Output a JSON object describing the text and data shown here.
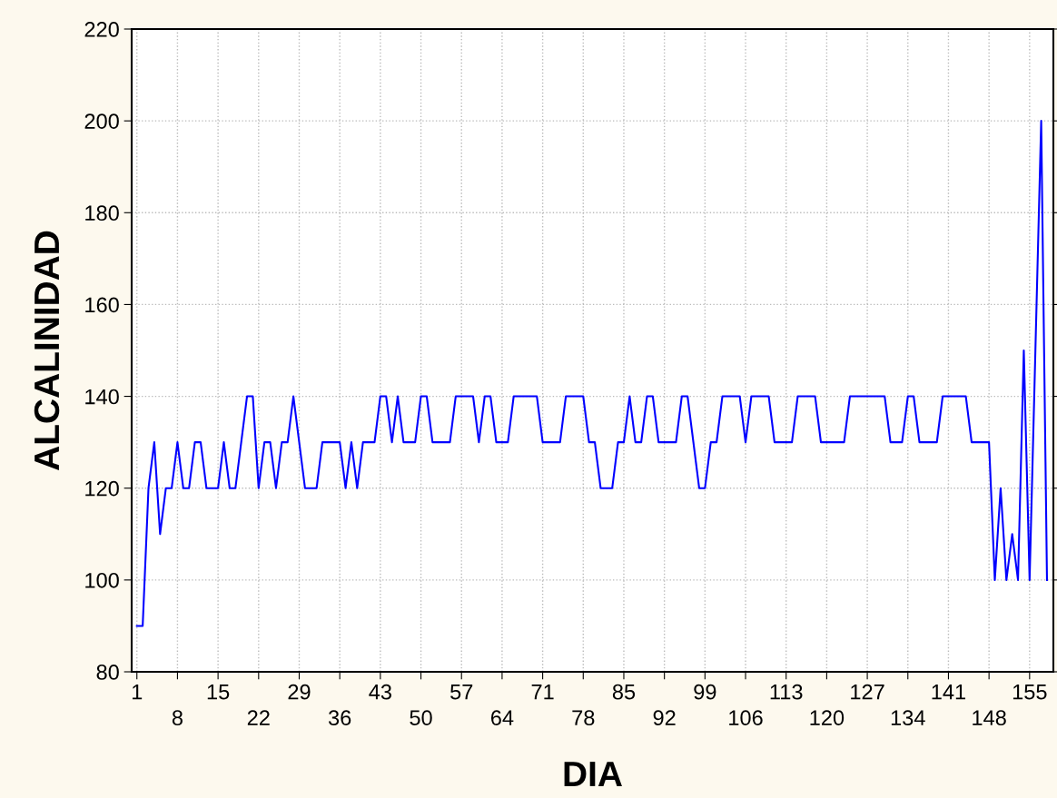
{
  "chart_data": {
    "type": "line",
    "xlabel": "DIA",
    "ylabel": "ALCALINIDAD",
    "x": [
      1,
      2,
      3,
      4,
      5,
      6,
      7,
      8,
      9,
      10,
      11,
      12,
      13,
      14,
      15,
      16,
      17,
      18,
      19,
      20,
      21,
      22,
      23,
      24,
      25,
      26,
      27,
      28,
      29,
      30,
      31,
      32,
      33,
      34,
      35,
      36,
      37,
      38,
      39,
      40,
      41,
      42,
      43,
      44,
      45,
      46,
      47,
      48,
      49,
      50,
      51,
      52,
      53,
      54,
      55,
      56,
      57,
      58,
      59,
      60,
      61,
      62,
      63,
      64,
      65,
      66,
      67,
      68,
      69,
      70,
      71,
      72,
      73,
      74,
      75,
      76,
      77,
      78,
      79,
      80,
      81,
      82,
      83,
      84,
      85,
      86,
      87,
      88,
      89,
      90,
      91,
      92,
      93,
      94,
      95,
      96,
      97,
      98,
      99,
      100,
      101,
      102,
      103,
      104,
      105,
      106,
      107,
      108,
      109,
      110,
      111,
      112,
      113,
      114,
      115,
      116,
      117,
      118,
      119,
      120,
      121,
      122,
      123,
      124,
      125,
      126,
      127,
      128,
      129,
      130,
      131,
      132,
      133,
      134,
      135,
      136,
      137,
      138,
      139,
      140,
      141,
      142,
      143,
      144,
      145,
      146,
      147,
      148,
      149,
      150,
      151,
      152,
      153,
      154,
      155,
      156,
      157,
      158
    ],
    "series": [
      {
        "color": "#0000ff",
        "values": [
          90,
          90,
          120,
          130,
          110,
          120,
          120,
          130,
          120,
          120,
          130,
          130,
          120,
          120,
          120,
          130,
          120,
          120,
          130,
          140,
          140,
          120,
          130,
          130,
          120,
          130,
          130,
          140,
          130,
          120,
          120,
          120,
          130,
          130,
          130,
          130,
          120,
          130,
          120,
          130,
          130,
          130,
          140,
          140,
          130,
          140,
          130,
          130,
          130,
          140,
          140,
          130,
          130,
          130,
          130,
          140,
          140,
          140,
          140,
          130,
          140,
          140,
          130,
          130,
          130,
          140,
          140,
          140,
          140,
          140,
          130,
          130,
          130,
          130,
          140,
          140,
          140,
          140,
          130,
          130,
          120,
          120,
          120,
          130,
          130,
          140,
          130,
          130,
          140,
          140,
          130,
          130,
          130,
          130,
          140,
          140,
          130,
          120,
          120,
          130,
          130,
          140,
          140,
          140,
          140,
          130,
          140,
          140,
          140,
          140,
          130,
          130,
          130,
          130,
          140,
          140,
          140,
          140,
          130,
          130,
          130,
          130,
          130,
          140,
          140,
          140,
          140,
          140,
          140,
          140,
          130,
          130,
          130,
          140,
          140,
          130,
          130,
          130,
          130,
          140,
          140,
          140,
          140,
          140,
          130,
          130,
          130,
          130,
          100,
          120,
          100,
          110,
          100,
          150,
          100,
          150,
          200,
          100
        ]
      }
    ],
    "xlim": [
      0.1,
      159.1
    ],
    "xticks": [
      1,
      {
        "value": 8,
        "label": null
      },
      15,
      {
        "value": 22,
        "label": null
      },
      29,
      {
        "value": 36,
        "label": null
      },
      43,
      {
        "value": 50,
        "label": null
      },
      57,
      {
        "value": 64,
        "label": null
      },
      71,
      {
        "value": 78,
        "label": null
      },
      85,
      {
        "value": 92,
        "label": null
      },
      99,
      {
        "value": 106,
        "label": null
      },
      113,
      {
        "value": 120,
        "label": null
      },
      127,
      {
        "value": 134,
        "label": null
      },
      141,
      {
        "value": 148,
        "label": null
      },
      155
    ],
    "x2lim": [
      0.1,
      159.1
    ],
    "x2ticks": [
      8,
      22,
      36,
      50,
      64,
      78,
      92,
      106,
      120,
      134,
      148
    ],
    "ylim": [
      80,
      220
    ],
    "yticks": [
      80,
      100,
      120,
      140,
      160,
      180,
      200,
      220
    ],
    "grid": true,
    "marker": "none",
    "line_style": "solid"
  }
}
